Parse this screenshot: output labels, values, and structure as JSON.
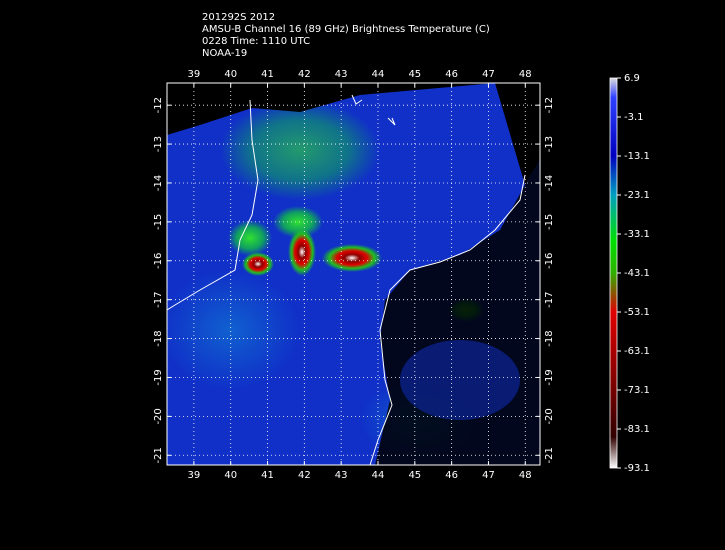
{
  "header": {
    "lines": [
      "201292S 2012",
      "AMSU-B Channel 16 (89 GHz) Brightness Temperature (C)",
      "0228 Time: 1110 UTC",
      "NOAA-19"
    ]
  },
  "map": {
    "lon_range": [
      38.27,
      48.4
    ],
    "lat_range": [
      -11.43,
      -21.25
    ],
    "lon_ticks": [
      39,
      40,
      41,
      42,
      43,
      44,
      45,
      46,
      47,
      48
    ],
    "lat_ticks": [
      -12,
      -13,
      -14,
      -15,
      -16,
      -17,
      -18,
      -19,
      -20,
      -21
    ]
  },
  "colorbar": {
    "range": [
      -93.1,
      6.9
    ],
    "ticks": [
      6.9,
      -3.1,
      -13.1,
      -23.1,
      -33.1,
      -43.1,
      -53.1,
      -63.1,
      -73.1,
      -83.1,
      -93.1
    ]
  }
}
